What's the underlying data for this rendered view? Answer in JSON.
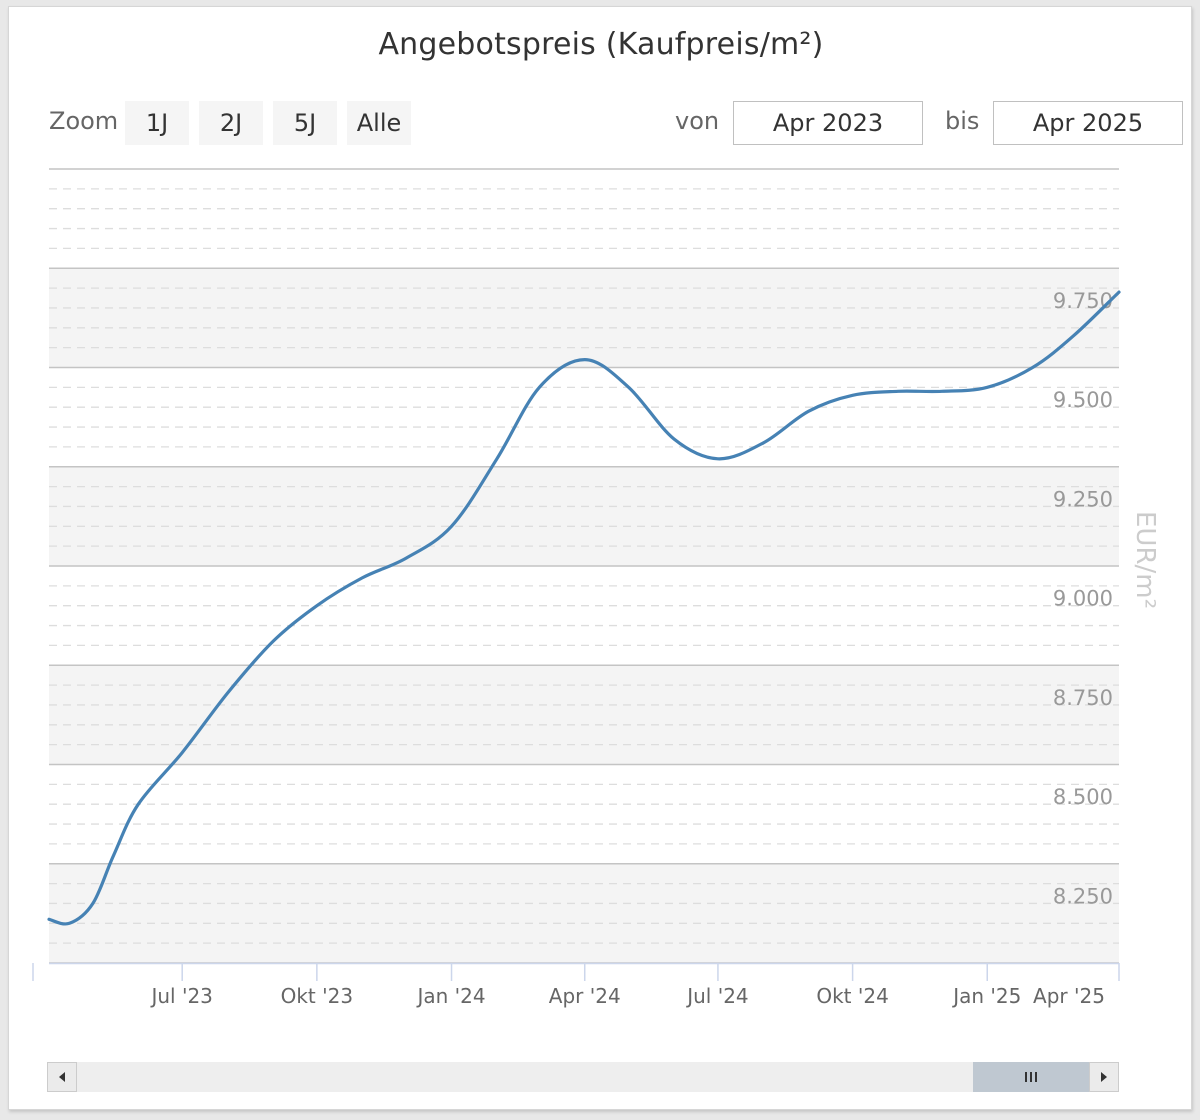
{
  "title": "Angebotspreis (Kaufpreis/m²)",
  "toolbar": {
    "zoom_label": "Zoom",
    "zoom_buttons": [
      "1J",
      "2J",
      "5J",
      "Alle"
    ],
    "from_label": "von",
    "from_value": "Apr 2023",
    "to_label": "bis",
    "to_value": "Apr 2025"
  },
  "colors": {
    "series": "#4682b4",
    "band": "#f4f4f4",
    "tick_label": "#999999",
    "axis_title": "#cccccc"
  },
  "chart_data": {
    "type": "line",
    "x_range": [
      "2023-04-01",
      "2025-04-01"
    ],
    "ylim": [
      8.1,
      10.1
    ],
    "y_ticks": [
      8.25,
      8.5,
      8.75,
      9.0,
      9.25,
      9.5,
      9.75
    ],
    "y_tick_labels": [
      "8.250",
      "8.500",
      "8.750",
      "9.000",
      "9.250",
      "9.500",
      "9.750"
    ],
    "x_ticks": [
      {
        "date": "2023-07-01",
        "label": "Jul '23"
      },
      {
        "date": "2023-10-01",
        "label": "Okt '23"
      },
      {
        "date": "2024-01-01",
        "label": "Jan '24"
      },
      {
        "date": "2024-04-01",
        "label": "Apr '24"
      },
      {
        "date": "2024-07-01",
        "label": "Jul '24"
      },
      {
        "date": "2024-10-01",
        "label": "Okt '24"
      },
      {
        "date": "2025-01-01",
        "label": "Jan '25"
      },
      {
        "date": "2025-04-01",
        "label": "Apr '25"
      }
    ],
    "ylabel": "EUR/m²",
    "xlabel": "",
    "grid": true,
    "series": [
      {
        "values": [
          {
            "date": "2023-04-01",
            "y": 8.21
          },
          {
            "date": "2023-04-15",
            "y": 8.2
          },
          {
            "date": "2023-05-01",
            "y": 8.25
          },
          {
            "date": "2023-05-15",
            "y": 8.37
          },
          {
            "date": "2023-06-01",
            "y": 8.5
          },
          {
            "date": "2023-07-01",
            "y": 8.63
          },
          {
            "date": "2023-08-01",
            "y": 8.78
          },
          {
            "date": "2023-09-01",
            "y": 8.91
          },
          {
            "date": "2023-10-01",
            "y": 9.0
          },
          {
            "date": "2023-11-01",
            "y": 9.07
          },
          {
            "date": "2023-12-01",
            "y": 9.12
          },
          {
            "date": "2024-01-01",
            "y": 9.2
          },
          {
            "date": "2024-02-01",
            "y": 9.37
          },
          {
            "date": "2024-03-01",
            "y": 9.55
          },
          {
            "date": "2024-04-01",
            "y": 9.62
          },
          {
            "date": "2024-05-01",
            "y": 9.55
          },
          {
            "date": "2024-06-01",
            "y": 9.42
          },
          {
            "date": "2024-07-01",
            "y": 9.37
          },
          {
            "date": "2024-08-01",
            "y": 9.41
          },
          {
            "date": "2024-09-01",
            "y": 9.49
          },
          {
            "date": "2024-10-01",
            "y": 9.53
          },
          {
            "date": "2024-11-01",
            "y": 9.54
          },
          {
            "date": "2024-12-01",
            "y": 9.54
          },
          {
            "date": "2025-01-01",
            "y": 9.55
          },
          {
            "date": "2025-02-01",
            "y": 9.6
          },
          {
            "date": "2025-03-01",
            "y": 9.68
          },
          {
            "date": "2025-04-01",
            "y": 9.79
          }
        ]
      }
    ]
  },
  "navigator": {
    "scroll_left_icon": "scroll-left-arrow-icon",
    "scroll_right_icon": "scroll-right-arrow-icon",
    "grip_icon": "grip-lines-icon"
  }
}
